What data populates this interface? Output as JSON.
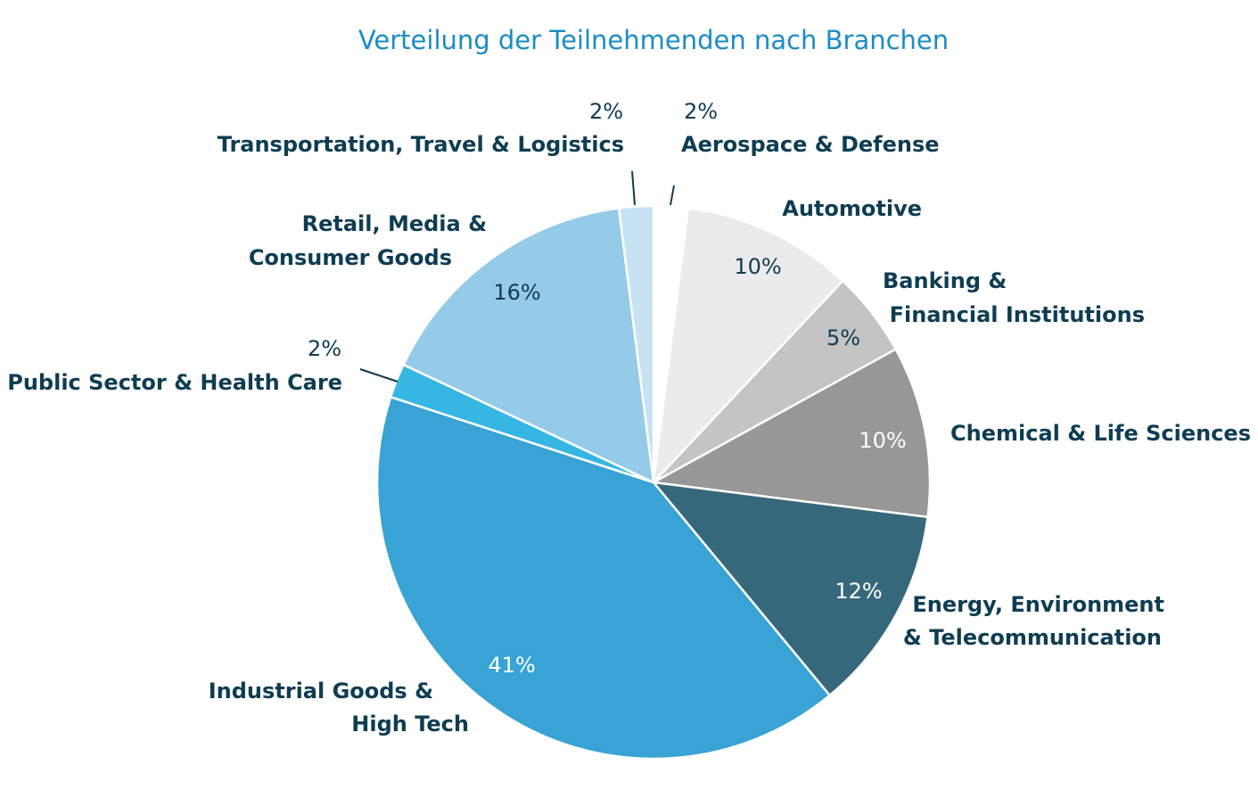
{
  "chart_data": {
    "type": "pie",
    "title": "Verteilung der Teilnehmenden nach Branchen",
    "slices": [
      {
        "key": "aerospace",
        "lines": [
          "Aerospace & Defense"
        ],
        "value": 2,
        "label": "2%",
        "color": "#ffffff",
        "label_color": "#0e3d52"
      },
      {
        "key": "automotive",
        "lines": [
          "Automotive"
        ],
        "value": 10,
        "label": "10%",
        "color": "#ebebeb",
        "label_color": "#0e3d52"
      },
      {
        "key": "banking",
        "lines": [
          "Banking &",
          "Financial Institutions"
        ],
        "value": 5,
        "label": "5%",
        "color": "#c4c4c4",
        "label_color": "#0e3d52"
      },
      {
        "key": "chemical",
        "lines": [
          "Chemical & Life Sciences"
        ],
        "value": 10,
        "label": "10%",
        "color": "#979797",
        "label_color": "#ffffff"
      },
      {
        "key": "energy",
        "lines": [
          "Energy, Environment",
          "& Telecommunication"
        ],
        "value": 12,
        "label": "12%",
        "color": "#36687c",
        "label_color": "#ffffff"
      },
      {
        "key": "industrial",
        "lines": [
          "Industrial Goods &",
          "High Tech"
        ],
        "value": 41,
        "label": "41%",
        "color": "#38a3d4",
        "label_color": "#ffffff"
      },
      {
        "key": "public",
        "lines": [
          "Public Sector & Health Care"
        ],
        "value": 2,
        "label": "2%",
        "color": "#36b7e3",
        "label_color": "#0e3d52"
      },
      {
        "key": "retail",
        "lines": [
          "Retail, Media &",
          "Consumer Goods"
        ],
        "value": 16,
        "label": "16%",
        "color": "#94cbe9",
        "label_color": "#0e3d52"
      },
      {
        "key": "transport",
        "lines": [
          "Transportation, Travel & Logistics"
        ],
        "value": 2,
        "label": "2%",
        "color": "#c6e2f3",
        "label_color": "#0e3d52"
      }
    ],
    "legend": "none"
  }
}
